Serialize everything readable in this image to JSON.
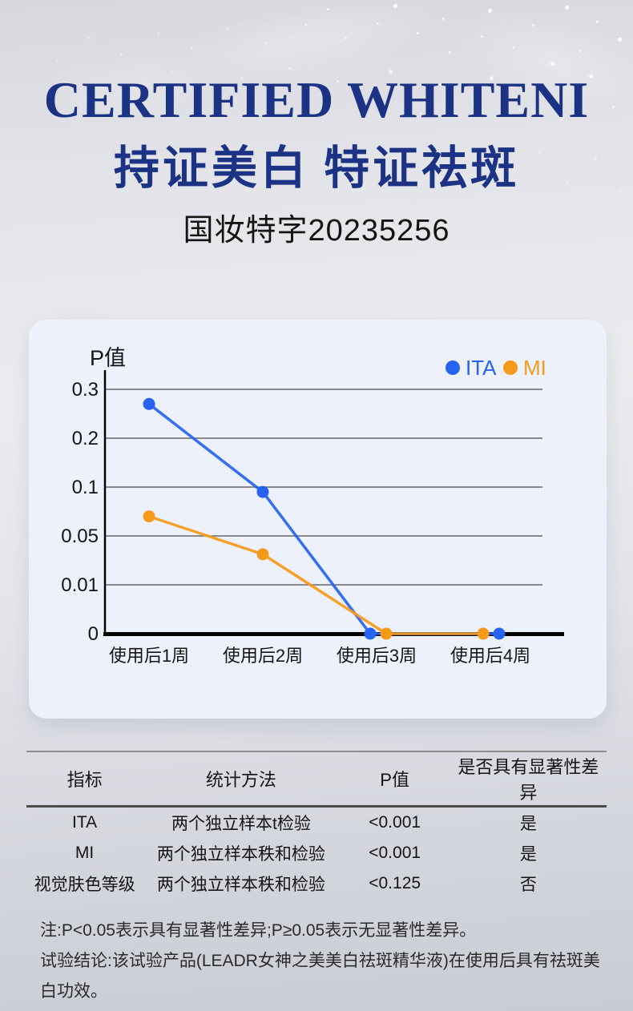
{
  "page": {
    "title_en": "CERTIFIED WHITENI",
    "title_cn": "持证美白 特证祛斑",
    "cert_number": "国妆特字20235256"
  },
  "chart_data": {
    "type": "line",
    "title": "P值",
    "xlabel": "",
    "ylabel": "P值",
    "categories": [
      "使用后1周",
      "使用后2周",
      "使用后3周",
      "使用后4周"
    ],
    "yticks": [
      0.3,
      0.2,
      0.1,
      0.05,
      0.01,
      0
    ],
    "y_scale": "ordinal-equal-spacing",
    "grid": true,
    "legend_position": "top-right",
    "series": [
      {
        "name": "ITA",
        "color": "#2563f0",
        "values": [
          0.27,
          0.095,
          0,
          0
        ]
      },
      {
        "name": "MI",
        "color": "#f69a1a",
        "values": [
          0.07,
          0.035,
          0,
          0
        ]
      }
    ]
  },
  "table": {
    "headers": [
      "指标",
      "统计方法",
      "P值",
      "是否具有显著性差异"
    ],
    "rows": [
      [
        "ITA",
        "两个独立样本t检验",
        "<0.001",
        "是"
      ],
      [
        "MI",
        "两个独立样本秩和检验",
        "<0.001",
        "是"
      ],
      [
        "视觉肤色等级",
        "两个独立样本秩和检验",
        "<0.125",
        "否"
      ]
    ]
  },
  "notes": {
    "note1": "注:P<0.05表示具有显著性差异;P≥0.05表示无显著性差异。",
    "note2": "试验结论:该试验产品(LEADR女神之美美白祛斑精华液)在使用后具有祛斑美白功效。"
  },
  "colors": {
    "title_navy": "#1b3285",
    "ita_blue": "#2563f0",
    "mi_orange": "#f69a1a",
    "card_bg": "#edf1fc"
  }
}
